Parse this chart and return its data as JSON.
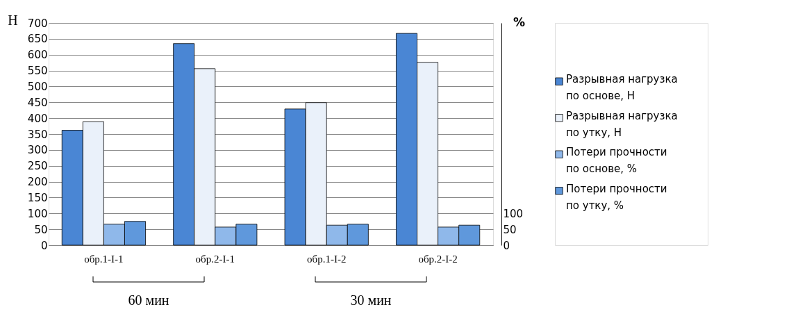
{
  "chart_data": {
    "type": "bar",
    "ylabel": "Н",
    "y2label": "%",
    "categories": [
      "обр.1-I-1",
      "обр.2-I-1",
      "обр.1-I-2",
      "обр.2-I-2"
    ],
    "series": [
      {
        "name": "Разрывная нагрузка по основе, Н",
        "color": "#4a86d4",
        "values": [
          362,
          635,
          429,
          667
        ]
      },
      {
        "name": "Разрывная нагрузка по утку, Н",
        "color": "#eaf1fa",
        "values": [
          389,
          556,
          449,
          576
        ]
      },
      {
        "name": "Потери прочности по основе, %",
        "color": "#8fb8ea",
        "values": [
          66,
          57,
          63,
          57
        ],
        "axis": "y2"
      },
      {
        "name": "Потери прочности по утку, %",
        "color": "#5f98dc",
        "values": [
          75,
          66,
          66,
          63
        ],
        "axis": "y2"
      }
    ],
    "ylim": [
      0,
      700
    ],
    "yticks": [
      0,
      50,
      100,
      150,
      200,
      250,
      300,
      350,
      400,
      450,
      500,
      550,
      600,
      650,
      700
    ],
    "y2lim": [
      0,
      700
    ],
    "y2ticks": [
      0,
      50,
      100
    ],
    "grid": "y",
    "legend": "right",
    "annotations": [
      "60 мин",
      "30 мин"
    ]
  }
}
